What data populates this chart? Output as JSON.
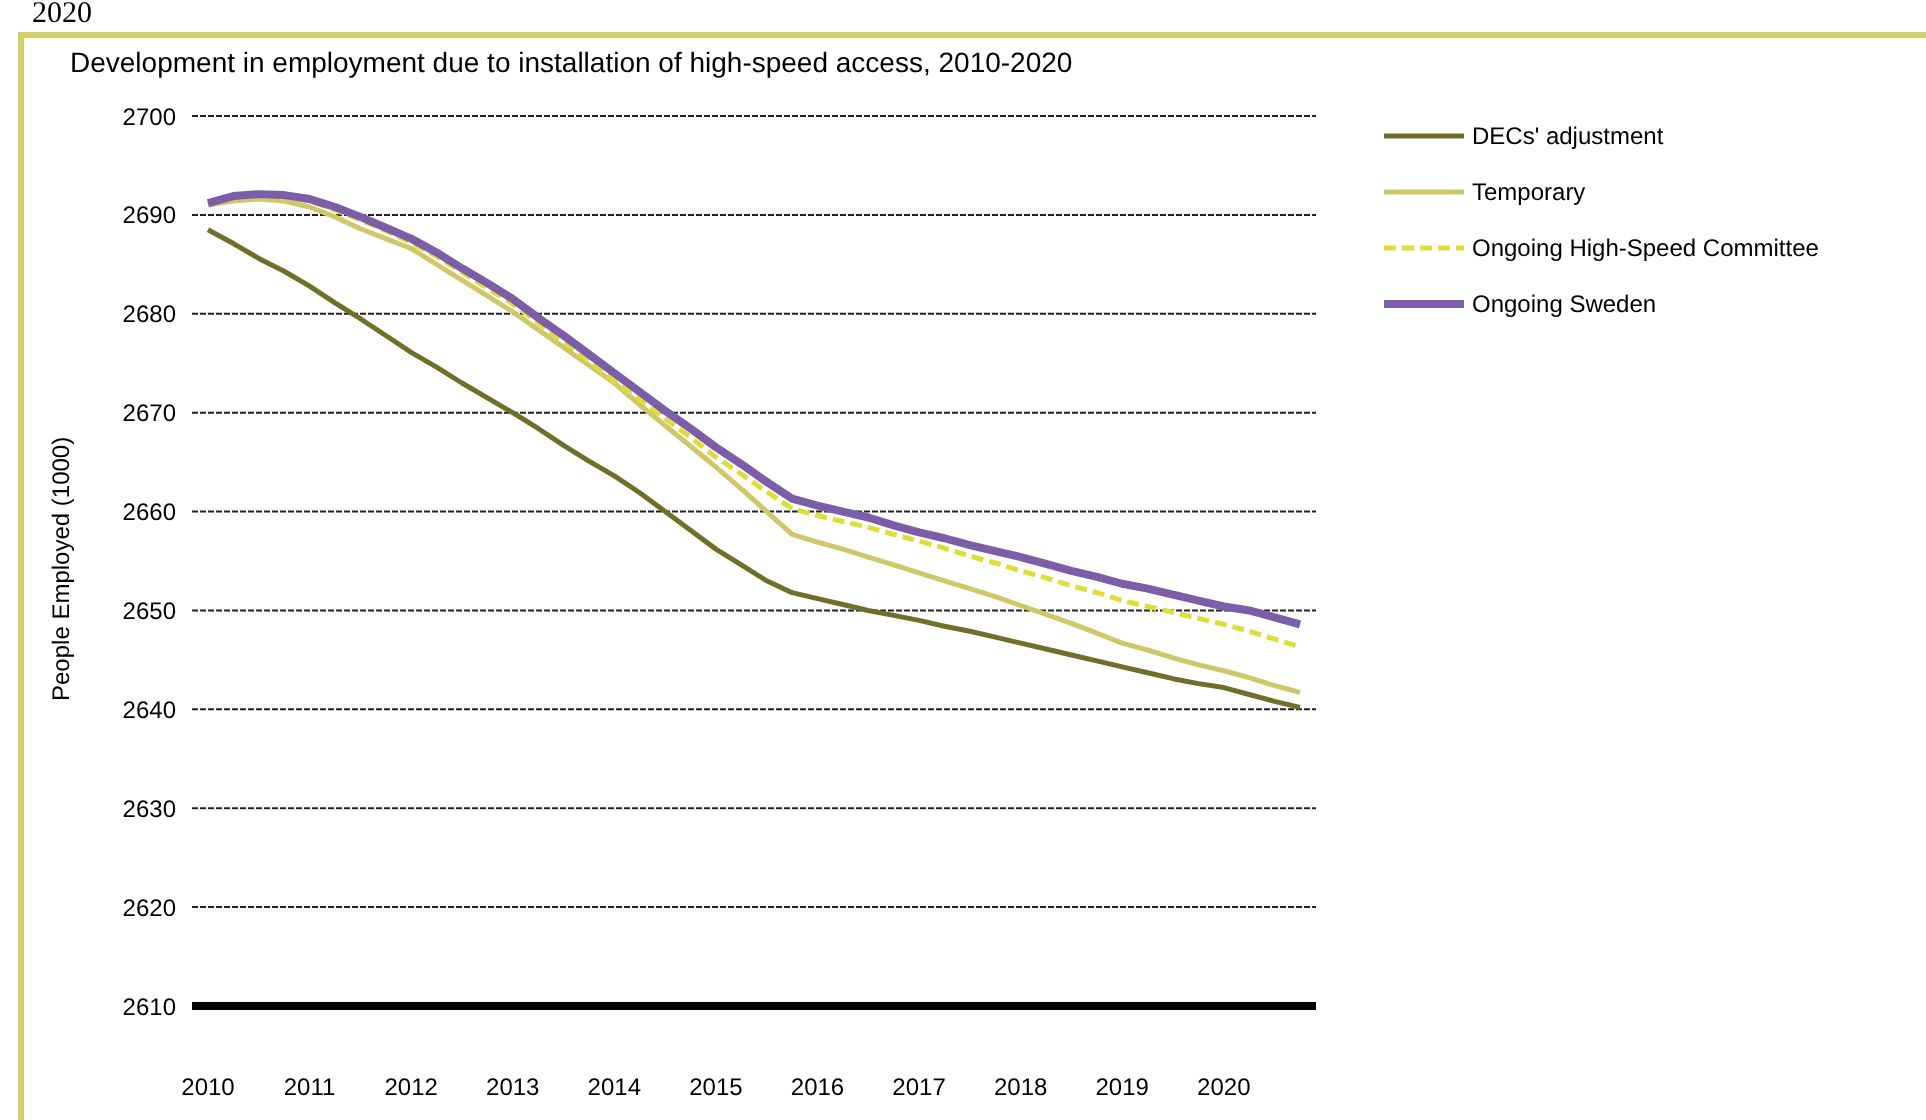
{
  "chart_data": {
    "type": "line",
    "title": "Development in employment due to installation of high-speed access, 2010-2020",
    "ylabel": "People Employed (1000)",
    "annotations": [
      "2020"
    ],
    "categories": [
      "2010",
      null,
      null,
      null,
      "2011",
      null,
      null,
      null,
      "2012",
      null,
      null,
      null,
      "2013",
      null,
      null,
      null,
      "2014",
      null,
      null,
      null,
      "2015",
      null,
      null,
      null,
      "2016",
      null,
      null,
      null,
      "2017",
      null,
      null,
      null,
      "2018",
      null,
      null,
      null,
      "2019",
      null,
      null,
      null,
      "2020",
      null,
      null,
      null
    ],
    "ylim": [
      2610,
      2700
    ],
    "yticks": [
      2610,
      2620,
      2630,
      2640,
      2650,
      2660,
      2670,
      2680,
      2690,
      2700
    ],
    "grid": "y",
    "legend": "top right",
    "marker": "none",
    "series": [
      {
        "name": "DECs' adjustment",
        "color": "#6f6f2a",
        "values": [
          2688.5,
          2687.1,
          2685.6,
          2684.3,
          2682.8,
          2681.1,
          2679.5,
          2677.8,
          2676.1,
          2674.6,
          2673.0,
          2671.5,
          2670.0,
          2668.4,
          2666.7,
          2665.1,
          2663.6,
          2661.9,
          2660.0,
          2658.1,
          2656.2,
          2654.6,
          2653.0,
          2651.8,
          2651.2,
          2650.6,
          2650.0,
          2649.5,
          2649.0,
          2648.4,
          2647.9,
          2647.3,
          2646.7,
          2646.1,
          2645.5,
          2644.9,
          2644.3,
          2643.7,
          2643.1,
          2642.6,
          2642.2,
          2641.5,
          2640.8,
          2640.2
        ]
      },
      {
        "name": "Temporary",
        "color": "#cfc76a",
        "values": [
          2691.0,
          2691.4,
          2691.6,
          2691.4,
          2690.8,
          2689.8,
          2688.6,
          2687.6,
          2686.6,
          2685.0,
          2683.4,
          2681.8,
          2680.2,
          2678.4,
          2676.6,
          2674.8,
          2673.0,
          2670.8,
          2668.7,
          2666.6,
          2664.5,
          2662.3,
          2660.0,
          2657.7,
          2656.9,
          2656.2,
          2655.4,
          2654.6,
          2653.8,
          2653.0,
          2652.2,
          2651.4,
          2650.5,
          2649.6,
          2648.7,
          2647.7,
          2646.7,
          2646.0,
          2645.2,
          2644.5,
          2643.9,
          2643.2,
          2642.4,
          2641.7
        ]
      },
      {
        "name": "Ongoing High-Speed Committee",
        "color": "#dede3a",
        "line_style": "dashed",
        "values": [
          2691.1,
          2691.8,
          2692.0,
          2691.9,
          2691.4,
          2690.5,
          2689.5,
          2688.4,
          2687.2,
          2685.8,
          2684.2,
          2682.6,
          2681.0,
          2679.1,
          2677.2,
          2675.2,
          2673.2,
          2671.3,
          2669.4,
          2667.5,
          2665.5,
          2663.8,
          2662.0,
          2660.3,
          2659.6,
          2659.0,
          2658.4,
          2657.7,
          2657.0,
          2656.3,
          2655.5,
          2654.8,
          2654.0,
          2653.3,
          2652.5,
          2651.8,
          2651.0,
          2650.4,
          2649.8,
          2649.2,
          2648.6,
          2647.9,
          2647.1,
          2646.3
        ]
      },
      {
        "name": "Ongoing Sweden",
        "color": "#7b5ea7",
        "values": [
          2691.2,
          2691.9,
          2692.1,
          2692.0,
          2691.6,
          2690.8,
          2689.8,
          2688.7,
          2687.6,
          2686.2,
          2684.6,
          2683.1,
          2681.5,
          2679.6,
          2677.8,
          2675.9,
          2674.0,
          2672.1,
          2670.2,
          2668.4,
          2666.5,
          2664.8,
          2663.0,
          2661.3,
          2660.6,
          2660.0,
          2659.4,
          2658.6,
          2657.9,
          2657.3,
          2656.6,
          2656.0,
          2655.4,
          2654.7,
          2654.0,
          2653.4,
          2652.7,
          2652.2,
          2651.6,
          2651.0,
          2650.4,
          2650.0,
          2649.3,
          2648.6
        ]
      }
    ]
  }
}
